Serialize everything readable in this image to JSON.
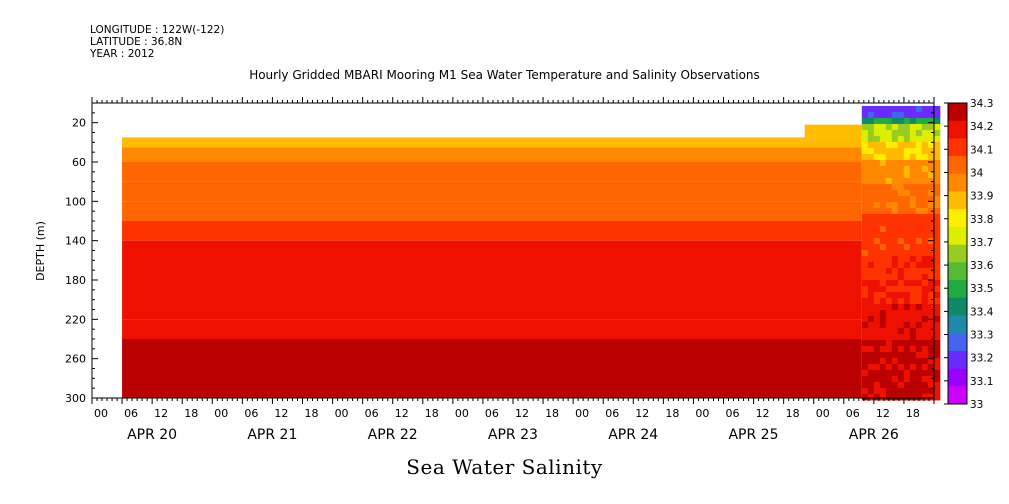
{
  "header": {
    "longitude": "LONGITUDE : 122W(-122)",
    "latitude": "LATITUDE : 36.8N",
    "year": "YEAR : 2012",
    "title": "Hourly Gridded MBARI Mooring M1 Sea Water Temperature and Salinity Observations",
    "bottom_title": "Sea Water Salinity"
  },
  "chart_data": {
    "type": "heatmap",
    "ylabel": "DEPTH (m)",
    "ylim": [
      0,
      300
    ],
    "y_inverted": true,
    "y_ticks": [
      20,
      60,
      100,
      140,
      180,
      220,
      260,
      300
    ],
    "x_hour_labels": [
      "00",
      "06",
      "12",
      "18",
      "00",
      "06",
      "12",
      "18",
      "00",
      "06",
      "12",
      "18",
      "00",
      "06",
      "12",
      "18",
      "00",
      "06",
      "12",
      "18",
      "00",
      "06",
      "12",
      "18",
      "00",
      "06",
      "12",
      "18"
    ],
    "x_day_labels": [
      "APR 20",
      "APR 21",
      "APR 22",
      "APR 23",
      "APR 24",
      "APR 25",
      "APR 26"
    ],
    "colorbar_levels": [
      "33",
      "33.1",
      "33.2",
      "33.3",
      "33.4",
      "33.5",
      "33.6",
      "33.7",
      "33.8",
      "33.9",
      "34",
      "34.1",
      "34.2",
      "34.3"
    ],
    "colorbar_colors": [
      "#cc00ff",
      "#9900ff",
      "#6a2bff",
      "#4466ee",
      "#2288aa",
      "#118866",
      "#22aa44",
      "#55bb33",
      "#99cc22",
      "#ddee00",
      "#ffee00",
      "#ffbb00",
      "#ff8800",
      "#ff6600",
      "#ff3300",
      "#ee1100",
      "#bb0000"
    ],
    "start_hour_offset": 6,
    "depth_bands": [
      {
        "from_depth": 35,
        "to_depth": 45,
        "salinity": 33.9
      },
      {
        "from_depth": 45,
        "to_depth": 60,
        "salinity": 33.95
      },
      {
        "from_depth": 60,
        "to_depth": 80,
        "salinity": 34.0
      },
      {
        "from_depth": 80,
        "to_depth": 100,
        "salinity": 34.02
      },
      {
        "from_depth": 100,
        "to_depth": 120,
        "salinity": 34.07
      },
      {
        "from_depth": 120,
        "to_depth": 140,
        "salinity": 34.12
      },
      {
        "from_depth": 140,
        "to_depth": 220,
        "salinity": 34.17
      },
      {
        "from_depth": 220,
        "to_depth": 240,
        "salinity": 34.22
      },
      {
        "from_depth": 240,
        "to_depth": 300,
        "salinity": 34.27
      }
    ]
  }
}
